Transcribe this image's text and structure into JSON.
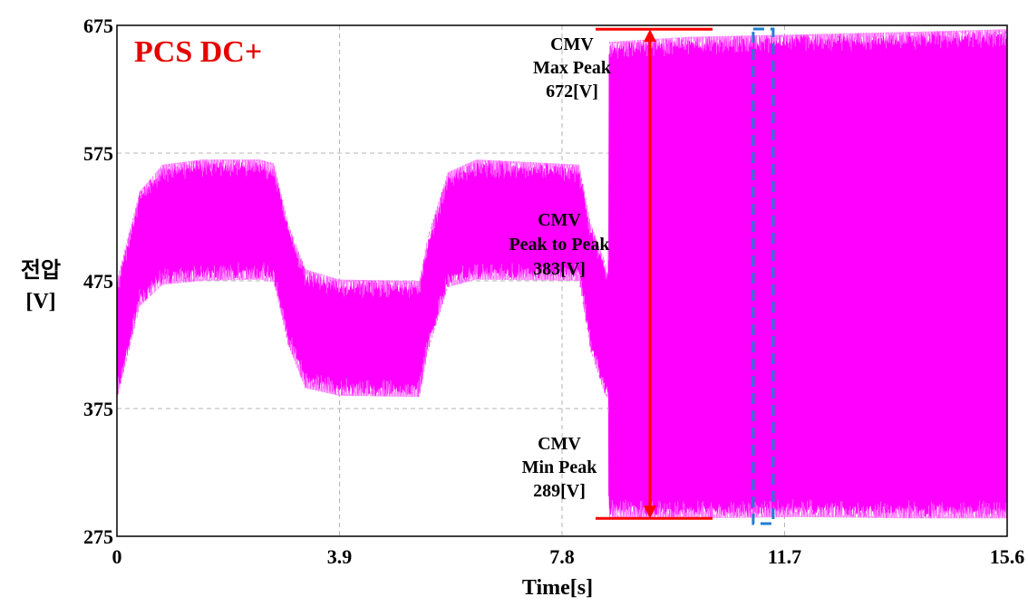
{
  "chart_data": {
    "type": "line",
    "title": "PCS DC+",
    "xlabel": "Time[s]",
    "ylabel": [
      "전압",
      "[V]"
    ],
    "xlim": [
      0,
      15.6
    ],
    "ylim": [
      275,
      675
    ],
    "x_ticks": [
      "0",
      "3.9",
      "7.8",
      "11.7",
      "15.6"
    ],
    "y_ticks": [
      "675",
      "575",
      "475",
      "375",
      "275"
    ],
    "x_tick_values": [
      0,
      3.9,
      7.8,
      11.7,
      15.6
    ],
    "y_tick_values": [
      675,
      575,
      475,
      375,
      275
    ],
    "grid": true,
    "series_color": "#ff00ff",
    "envelope": [
      {
        "t": 0.0,
        "upper": 475,
        "lower": 382
      },
      {
        "t": 0.4,
        "upper": 545,
        "lower": 455
      },
      {
        "t": 0.8,
        "upper": 566,
        "lower": 472
      },
      {
        "t": 1.5,
        "upper": 570,
        "lower": 475
      },
      {
        "t": 2.5,
        "upper": 570,
        "lower": 476
      },
      {
        "t": 2.75,
        "upper": 567,
        "lower": 474
      },
      {
        "t": 3.0,
        "upper": 520,
        "lower": 425
      },
      {
        "t": 3.3,
        "upper": 484,
        "lower": 391
      },
      {
        "t": 3.9,
        "upper": 476,
        "lower": 385
      },
      {
        "t": 5.3,
        "upper": 475,
        "lower": 384
      },
      {
        "t": 5.45,
        "upper": 510,
        "lower": 420
      },
      {
        "t": 5.8,
        "upper": 560,
        "lower": 470
      },
      {
        "t": 6.3,
        "upper": 570,
        "lower": 476
      },
      {
        "t": 8.1,
        "upper": 566,
        "lower": 475
      },
      {
        "t": 8.3,
        "upper": 520,
        "lower": 420
      },
      {
        "t": 8.55,
        "upper": 490,
        "lower": 386
      },
      {
        "t": 8.61,
        "upper": 480,
        "lower": 383
      },
      {
        "t": 8.62,
        "upper": 662,
        "lower": 290
      },
      {
        "t": 10.0,
        "upper": 666,
        "lower": 289
      },
      {
        "t": 12.0,
        "upper": 668,
        "lower": 290
      },
      {
        "t": 14.0,
        "upper": 670,
        "lower": 289
      },
      {
        "t": 15.6,
        "upper": 672,
        "lower": 289
      }
    ],
    "annotations": {
      "max_peak": {
        "lines": [
          "CMV",
          "Max Peak",
          "672[V]"
        ],
        "value": 672
      },
      "peak_to_peak": {
        "lines": [
          "CMV",
          "Peak to Peak",
          "383[V]"
        ],
        "value": 383
      },
      "min_peak": {
        "lines": [
          "CMV",
          "Min Peak",
          "289[V]"
        ],
        "value": 289
      },
      "marker_color": "#ff0000",
      "highlight_box_color": "#1f7fd1",
      "highlight_box_t": [
        11.15,
        11.5
      ]
    }
  }
}
